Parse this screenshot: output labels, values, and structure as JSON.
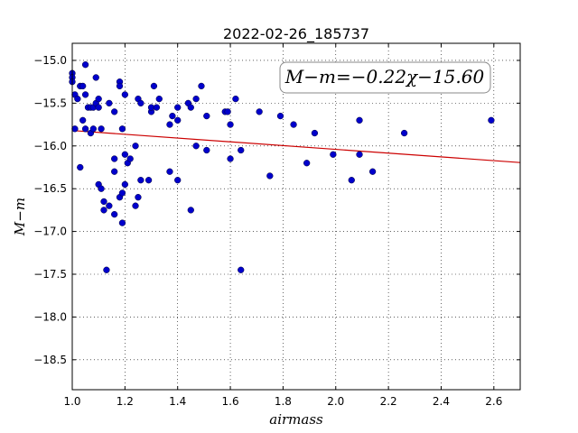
{
  "chart_data": {
    "type": "scatter",
    "title": "2022-02-26_185737",
    "xlabel": "airmass",
    "ylabel": "M−m",
    "xlim": [
      1.0,
      2.7
    ],
    "ylim": [
      -18.85,
      -14.8
    ],
    "y_inverted": true,
    "grid": true,
    "xticks": [
      1.0,
      1.2,
      1.4,
      1.6,
      1.8,
      2.0,
      2.2,
      2.4,
      2.6
    ],
    "xtick_labels": [
      "1.0",
      "1.2",
      "1.4",
      "1.6",
      "1.8",
      "2.0",
      "2.2",
      "2.4",
      "2.6"
    ],
    "yticks": [
      -15.0,
      -15.5,
      -16.0,
      -16.5,
      -17.0,
      -17.5,
      -18.0,
      -18.5
    ],
    "ytick_labels": [
      "−15.0",
      "−15.5",
      "−16.0",
      "−16.5",
      "−17.0",
      "−17.5",
      "−18.0",
      "−18.5"
    ],
    "annotation": "M−m=−0.22χ−15.60",
    "fit": {
      "slope": -0.22,
      "intercept": -15.6,
      "color": "#cc0000"
    },
    "point_color": "#0000cc",
    "points": [
      [
        1.0,
        -15.15
      ],
      [
        1.0,
        -15.2
      ],
      [
        1.0,
        -15.25
      ],
      [
        1.01,
        -15.4
      ],
      [
        1.01,
        -15.8
      ],
      [
        1.02,
        -15.45
      ],
      [
        1.03,
        -15.3
      ],
      [
        1.03,
        -16.25
      ],
      [
        1.04,
        -15.3
      ],
      [
        1.04,
        -15.7
      ],
      [
        1.05,
        -15.05
      ],
      [
        1.05,
        -15.4
      ],
      [
        1.05,
        -15.8
      ],
      [
        1.06,
        -15.55
      ],
      [
        1.07,
        -15.55
      ],
      [
        1.07,
        -15.85
      ],
      [
        1.08,
        -15.55
      ],
      [
        1.08,
        -15.8
      ],
      [
        1.09,
        -15.5
      ],
      [
        1.09,
        -15.2
      ],
      [
        1.1,
        -15.45
      ],
      [
        1.1,
        -15.55
      ],
      [
        1.1,
        -16.45
      ],
      [
        1.11,
        -15.8
      ],
      [
        1.11,
        -16.5
      ],
      [
        1.12,
        -16.65
      ],
      [
        1.12,
        -16.75
      ],
      [
        1.13,
        -17.45
      ],
      [
        1.14,
        -15.5
      ],
      [
        1.14,
        -16.7
      ],
      [
        1.16,
        -15.6
      ],
      [
        1.16,
        -16.15
      ],
      [
        1.16,
        -16.3
      ],
      [
        1.16,
        -16.8
      ],
      [
        1.18,
        -15.25
      ],
      [
        1.18,
        -15.3
      ],
      [
        1.18,
        -16.6
      ],
      [
        1.19,
        -16.55
      ],
      [
        1.19,
        -16.9
      ],
      [
        1.19,
        -15.8
      ],
      [
        1.2,
        -15.4
      ],
      [
        1.2,
        -16.1
      ],
      [
        1.2,
        -16.45
      ],
      [
        1.21,
        -16.2
      ],
      [
        1.22,
        -16.15
      ],
      [
        1.24,
        -16.7
      ],
      [
        1.24,
        -16.0
      ],
      [
        1.25,
        -15.45
      ],
      [
        1.25,
        -16.6
      ],
      [
        1.26,
        -15.5
      ],
      [
        1.26,
        -16.4
      ],
      [
        1.29,
        -16.4
      ],
      [
        1.3,
        -15.6
      ],
      [
        1.3,
        -15.55
      ],
      [
        1.31,
        -15.3
      ],
      [
        1.32,
        -15.55
      ],
      [
        1.33,
        -15.45
      ],
      [
        1.37,
        -15.75
      ],
      [
        1.37,
        -16.3
      ],
      [
        1.38,
        -15.65
      ],
      [
        1.4,
        -15.55
      ],
      [
        1.4,
        -15.7
      ],
      [
        1.4,
        -16.4
      ],
      [
        1.44,
        -15.5
      ],
      [
        1.45,
        -15.55
      ],
      [
        1.45,
        -16.75
      ],
      [
        1.47,
        -15.45
      ],
      [
        1.47,
        -16.0
      ],
      [
        1.49,
        -15.3
      ],
      [
        1.51,
        -15.65
      ],
      [
        1.51,
        -16.05
      ],
      [
        1.58,
        -15.6
      ],
      [
        1.59,
        -15.6
      ],
      [
        1.6,
        -15.75
      ],
      [
        1.6,
        -16.15
      ],
      [
        1.62,
        -15.45
      ],
      [
        1.64,
        -16.05
      ],
      [
        1.64,
        -17.45
      ],
      [
        1.71,
        -15.6
      ],
      [
        1.75,
        -16.35
      ],
      [
        1.79,
        -15.65
      ],
      [
        1.84,
        -15.75
      ],
      [
        1.89,
        -16.2
      ],
      [
        1.92,
        -15.85
      ],
      [
        1.99,
        -16.1
      ],
      [
        2.06,
        -16.4
      ],
      [
        2.09,
        -15.7
      ],
      [
        2.09,
        -16.1
      ],
      [
        2.14,
        -16.3
      ],
      [
        2.26,
        -15.85
      ],
      [
        2.59,
        -15.7
      ]
    ]
  }
}
